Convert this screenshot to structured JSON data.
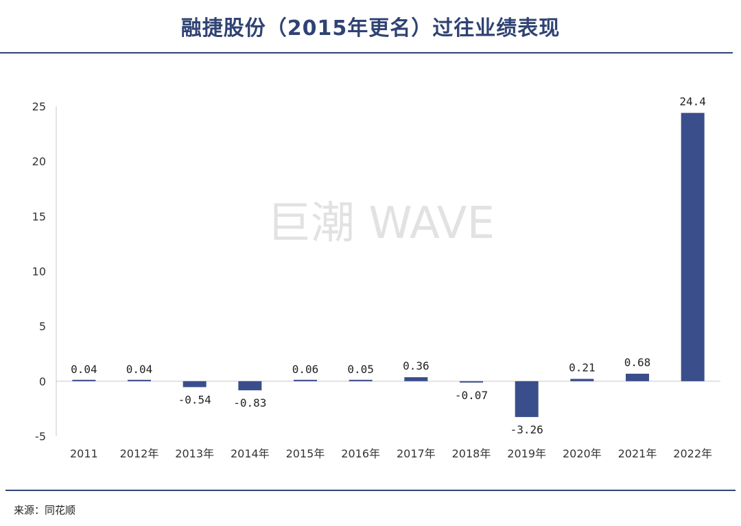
{
  "header": {
    "title": "融捷股份（2015年更名）过往业绩表现"
  },
  "footer": {
    "source": "来源：同花顺"
  },
  "watermark": {
    "text": "巨潮 WAVE"
  },
  "colors": {
    "bar": "#3a4e8c",
    "accent": "#2f4373"
  },
  "chart_data": {
    "type": "bar",
    "categories": [
      "2011",
      "2012年",
      "2013年",
      "2014年",
      "2015年",
      "2016年",
      "2017年",
      "2018年",
      "2019年",
      "2020年",
      "2021年",
      "2022年"
    ],
    "values": [
      0.04,
      0.04,
      -0.54,
      -0.83,
      0.06,
      0.05,
      0.36,
      -0.07,
      -3.26,
      0.21,
      0.68,
      24.4
    ],
    "value_labels": [
      "0.04",
      "0.04",
      "-0.54",
      "-0.83",
      "0.06",
      "0.05",
      "0.36",
      "-0.07",
      "-3.26",
      "0.21",
      "0.68",
      "24.4"
    ],
    "ylim": [
      -5,
      25
    ],
    "yticks": [
      25,
      20,
      15,
      10,
      5,
      0,
      -5
    ],
    "ytick_labels": [
      "25",
      "20",
      "15",
      "10",
      "5",
      "0",
      "-5"
    ],
    "grid": false,
    "title": "融捷股份（2015年更名）过往业绩表现",
    "xlabel": "",
    "ylabel": ""
  }
}
